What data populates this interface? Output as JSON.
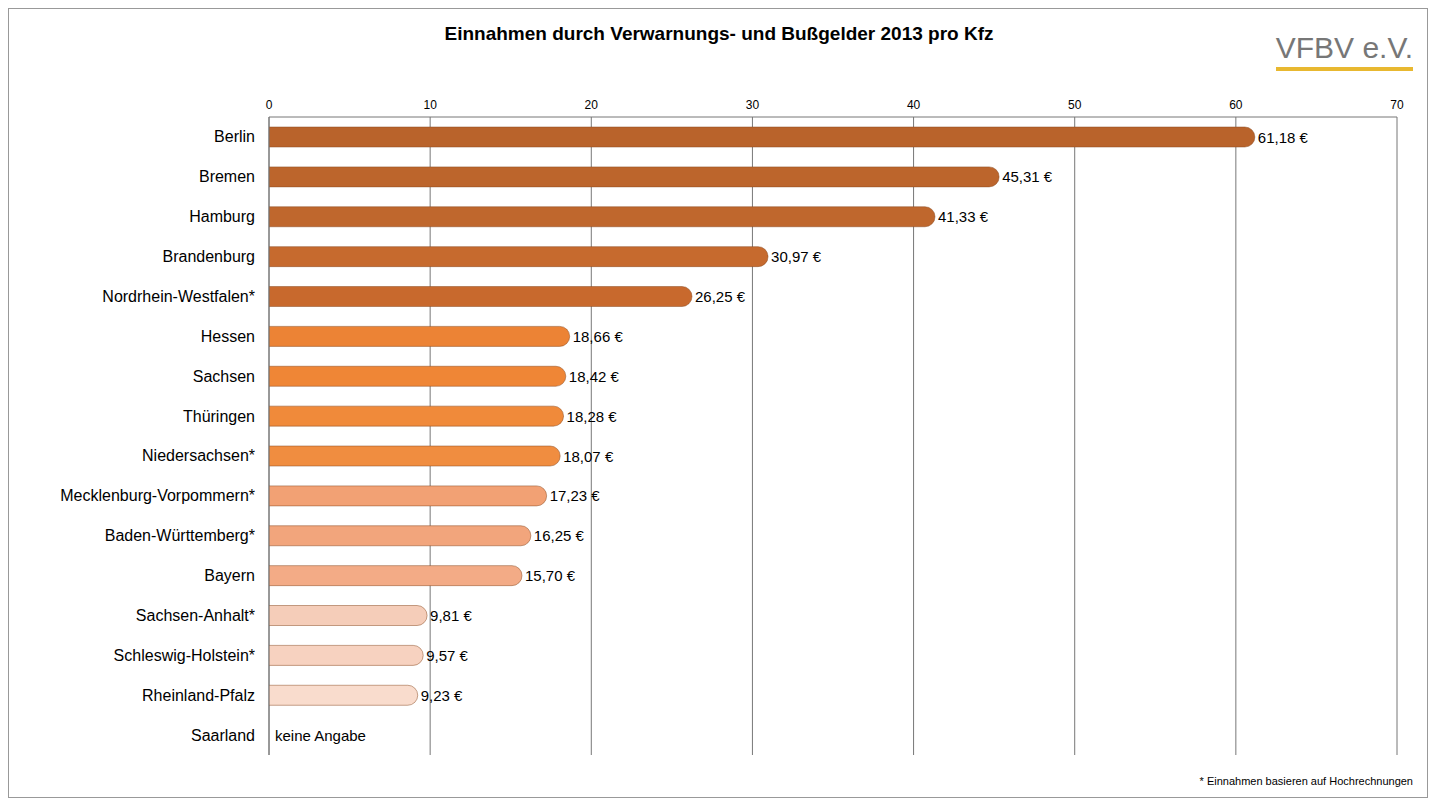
{
  "chart_data": {
    "type": "bar",
    "orientation": "horizontal",
    "title": "Einnahmen durch Verwarnungs- und Bußgelder 2013 pro Kfz",
    "annotations": [
      "* Einnahmen basieren auf Hochrechnungen",
      "VFBV e.V."
    ],
    "categories": [
      "Berlin",
      "Bremen",
      "Hamburg",
      "Brandenburg",
      "Nordrhein-Westfalen*",
      "Hessen",
      "Sachsen",
      "Thüringen",
      "Niedersachsen*",
      "Mecklenburg-Vorpommern*",
      "Baden-Württemberg*",
      "Bayern",
      "Sachsen-Anhalt*",
      "Schleswig-Holstein*",
      "Rheinland-Pfalz",
      "Saarland"
    ],
    "values": [
      61.18,
      45.31,
      41.33,
      30.97,
      26.25,
      18.66,
      18.42,
      18.28,
      18.07,
      17.23,
      16.25,
      15.7,
      9.81,
      9.57,
      9.23,
      null
    ],
    "value_labels": [
      "61,18 €",
      "45,31 €",
      "41,33 €",
      "30,97 €",
      "26,25 €",
      "18,66 €",
      "18,42 €",
      "18,28 €",
      "18,07 €",
      "17,23 €",
      "16,25 €",
      "15,70 €",
      "9,81 €",
      "9,57 €",
      "9,23 €",
      "keine Angabe"
    ],
    "colors": [
      "#b9632b",
      "#bc652c",
      "#bf672d",
      "#c66a2e",
      "#c8692d",
      "#ec8335",
      "#ef8636",
      "#f08a3a",
      "#f08d40",
      "#f2a174",
      "#f2a57c",
      "#f3ab86",
      "#f5cdb9",
      "#f7d2c0",
      "#f9dccd",
      "#b09085"
    ],
    "xlim": [
      0,
      70
    ],
    "xticks": [
      0,
      10,
      20,
      30,
      40,
      50,
      60,
      70
    ],
    "grid": true,
    "data_labels": true
  }
}
